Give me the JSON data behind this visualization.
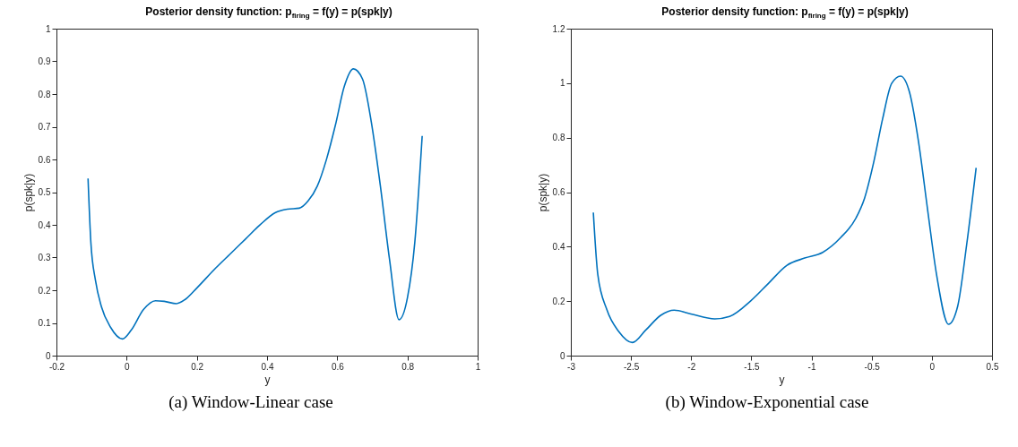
{
  "chart_data": [
    {
      "type": "line",
      "title": "Posterior density function: p$_{firing}$ = f(y) = p(spk|y)",
      "xlabel": "y",
      "ylabel": "p(spk|y)",
      "xlim": [
        -0.2,
        1
      ],
      "ylim": [
        0,
        1
      ],
      "xticks": [
        -0.2,
        0,
        0.2,
        0.4,
        0.6,
        0.8,
        1
      ],
      "yticks": [
        0,
        0.1,
        0.2,
        0.3,
        0.4,
        0.5,
        0.6,
        0.7,
        0.8,
        0.9,
        1
      ],
      "annotations": [
        "(a)  Window-Linear case"
      ],
      "series": [
        {
          "color": "#0072bd",
          "x": [
            -0.11,
            -0.102,
            -0.089,
            -0.072,
            -0.046,
            -0.012,
            0.013,
            0.048,
            0.082,
            0.107,
            0.142,
            0.167,
            0.201,
            0.253,
            0.295,
            0.338,
            0.381,
            0.423,
            0.458,
            0.492,
            0.517,
            0.543,
            0.569,
            0.595,
            0.62,
            0.646,
            0.672,
            0.697,
            0.723,
            0.749,
            0.776,
            0.8,
            0.821,
            0.842
          ],
          "values": [
            0.542,
            0.347,
            0.231,
            0.15,
            0.087,
            0.051,
            0.078,
            0.141,
            0.168,
            0.166,
            0.159,
            0.172,
            0.208,
            0.267,
            0.311,
            0.356,
            0.401,
            0.437,
            0.448,
            0.451,
            0.473,
            0.518,
            0.599,
            0.706,
            0.823,
            0.877,
            0.846,
            0.715,
            0.518,
            0.294,
            0.11,
            0.177,
            0.347,
            0.672
          ]
        }
      ]
    },
    {
      "type": "line",
      "title": "Posterior density function: p$_{firing}$ = f(y) = p(spk|y)",
      "xlabel": "y",
      "ylabel": "p(spk|y)",
      "xlim": [
        -3,
        0.5
      ],
      "ylim": [
        0,
        1.2
      ],
      "xticks": [
        -3,
        -2.5,
        -2,
        -1.5,
        -1,
        -0.5,
        0,
        0.5
      ],
      "yticks": [
        0,
        0.2,
        0.4,
        0.6,
        0.8,
        1,
        1.2
      ],
      "annotations": [
        "(b)  Window-Exponential case"
      ],
      "series": [
        {
          "color": "#0072bd",
          "x": [
            -2.813,
            -2.776,
            -2.701,
            -2.601,
            -2.489,
            -2.377,
            -2.253,
            -2.141,
            -2.003,
            -1.804,
            -1.68,
            -1.505,
            -1.356,
            -1.206,
            -1.057,
            -0.907,
            -0.758,
            -0.633,
            -0.559,
            -0.484,
            -0.409,
            -0.334,
            -0.26,
            -0.185,
            -0.11,
            -0.035,
            0.039,
            0.139,
            0.214,
            0.289,
            0.368
          ],
          "values": [
            0.525,
            0.298,
            0.169,
            0.088,
            0.048,
            0.094,
            0.148,
            0.167,
            0.153,
            0.135,
            0.144,
            0.201,
            0.266,
            0.331,
            0.358,
            0.379,
            0.433,
            0.503,
            0.578,
            0.708,
            0.869,
            0.999,
            1.026,
            0.966,
            0.783,
            0.535,
            0.298,
            0.115,
            0.18,
            0.406,
            0.689
          ]
        }
      ]
    }
  ]
}
